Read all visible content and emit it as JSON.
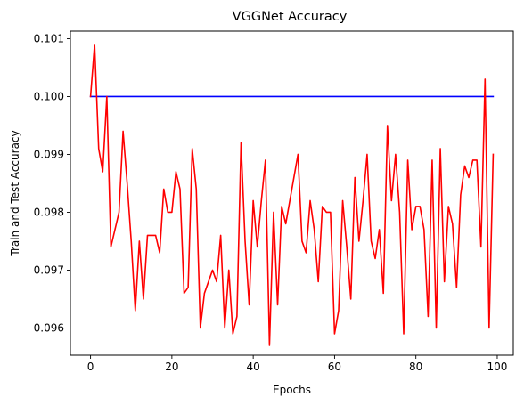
{
  "chart_data": {
    "type": "line",
    "title": "VGGNet Accuracy",
    "xlabel": "Epochs",
    "ylabel": "Train and Test Accuracy",
    "xlim": [
      -4.95,
      103.95
    ],
    "ylim": [
      0.09553,
      0.10113
    ],
    "xticks": [
      0,
      20,
      40,
      60,
      80,
      100
    ],
    "xtick_labels": [
      "0",
      "20",
      "40",
      "60",
      "80",
      "100"
    ],
    "yticks": [
      0.096,
      0.097,
      0.098,
      0.099,
      0.1,
      0.101
    ],
    "ytick_labels": [
      "0.096",
      "0.097",
      "0.098",
      "0.099",
      "0.100",
      "0.101"
    ],
    "grid": false,
    "legend": "none",
    "series": [
      {
        "color": "#0000ff",
        "x": [
          0,
          99
        ],
        "values": [
          0.1,
          0.1
        ]
      },
      {
        "color": "#ff0000",
        "x": [
          0,
          1,
          2,
          3,
          4,
          5,
          6,
          7,
          8,
          9,
          10,
          11,
          12,
          13,
          14,
          15,
          16,
          17,
          18,
          19,
          20,
          21,
          22,
          23,
          24,
          25,
          26,
          27,
          28,
          29,
          30,
          31,
          32,
          33,
          34,
          35,
          36,
          37,
          38,
          39,
          40,
          41,
          42,
          43,
          44,
          45,
          46,
          47,
          48,
          49,
          50,
          51,
          52,
          53,
          54,
          55,
          56,
          57,
          58,
          59,
          60,
          61,
          62,
          63,
          64,
          65,
          66,
          67,
          68,
          69,
          70,
          71,
          72,
          73,
          74,
          75,
          76,
          77,
          78,
          79,
          80,
          81,
          82,
          83,
          84,
          85,
          86,
          87,
          88,
          89,
          90,
          91,
          92,
          93,
          94,
          95,
          96,
          97,
          98,
          99
        ],
        "values": [
          0.1,
          0.1009,
          0.0991,
          0.0987,
          0.1,
          0.0974,
          0.0977,
          0.098,
          0.0994,
          0.0985,
          0.0975,
          0.0963,
          0.0975,
          0.0965,
          0.0976,
          0.0976,
          0.0976,
          0.0973,
          0.0984,
          0.098,
          0.098,
          0.0987,
          0.0984,
          0.0966,
          0.0967,
          0.0991,
          0.0984,
          0.096,
          0.0966,
          0.0968,
          0.097,
          0.0968,
          0.0976,
          0.096,
          0.097,
          0.0959,
          0.0962,
          0.0992,
          0.0975,
          0.0964,
          0.0982,
          0.0974,
          0.0982,
          0.0989,
          0.0957,
          0.098,
          0.0964,
          0.0981,
          0.0978,
          0.0982,
          0.0986,
          0.099,
          0.0975,
          0.0973,
          0.0982,
          0.0977,
          0.0968,
          0.0981,
          0.098,
          0.098,
          0.0959,
          0.0963,
          0.0982,
          0.0974,
          0.0965,
          0.0986,
          0.0975,
          0.0982,
          0.099,
          0.0975,
          0.0972,
          0.0977,
          0.0966,
          0.0995,
          0.0982,
          0.099,
          0.098,
          0.0959,
          0.0989,
          0.0977,
          0.0981,
          0.0981,
          0.0977,
          0.0962,
          0.0989,
          0.096,
          0.0991,
          0.0968,
          0.0981,
          0.0978,
          0.0967,
          0.0983,
          0.0988,
          0.0986,
          0.0989,
          0.0989,
          0.0974,
          0.1003,
          0.096,
          0.099
        ]
      }
    ]
  }
}
